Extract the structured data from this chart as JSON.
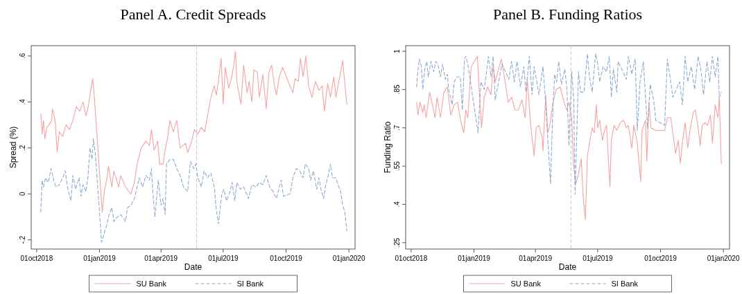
{
  "chart_data": [
    {
      "type": "line",
      "title": "Panel A. Credit Spreads",
      "xlabel": "Date",
      "ylabel": "Spread (%)",
      "xlim": [
        "2018-09-23",
        "2020-01-10"
      ],
      "xticks": [
        {
          "value": "2018-10-01",
          "label": "01oct2018"
        },
        {
          "value": "2019-01-01",
          "label": "01jan2019"
        },
        {
          "value": "2019-04-01",
          "label": "01apr2019"
        },
        {
          "value": "2019-07-01",
          "label": "01jul2019"
        },
        {
          "value": "2019-10-01",
          "label": "01oct2019"
        },
        {
          "value": "2020-01-01",
          "label": "01jan2020"
        }
      ],
      "ylim": [
        -0.24,
        0.645
      ],
      "yticks": [
        {
          "value": -0.2,
          "label": "-.2"
        },
        {
          "value": 0,
          "label": "0"
        },
        {
          "value": 0.2,
          "label": ".2"
        },
        {
          "value": 0.4,
          "label": ".4"
        },
        {
          "value": 0.6,
          "label": ".6"
        }
      ],
      "legend": "bottom",
      "ref_lines": [
        {
          "axis": "x",
          "value": "2019-05-23",
          "color": "#c8c8c8",
          "line_style": "dashed"
        }
      ],
      "series": [
        {
          "name": "SU Bank",
          "color": "#f4a3a3",
          "line_style": "solid",
          "x": [
            "2018-10-07",
            "2018-10-09",
            "2018-10-11",
            "2018-10-13",
            "2018-10-16",
            "2018-10-19",
            "2018-10-23",
            "2018-10-24",
            "2018-10-28",
            "2018-10-31",
            "2018-11-03",
            "2018-11-08",
            "2018-11-13",
            "2018-11-18",
            "2018-11-23",
            "2018-11-28",
            "2018-12-03",
            "2018-12-08",
            "2018-12-12",
            "2018-12-15",
            "2018-12-18",
            "2018-12-22",
            "2018-12-24",
            "2019-01-05",
            "2019-01-08",
            "2019-01-12",
            "2019-01-14",
            "2019-01-19",
            "2019-01-22",
            "2019-01-29",
            "2019-02-01",
            "2019-02-08",
            "2019-02-13",
            "2019-02-16",
            "2019-02-21",
            "2019-02-25",
            "2019-03-03",
            "2019-03-10",
            "2019-03-15",
            "2019-03-18",
            "2019-03-22",
            "2019-03-27",
            "2019-03-30",
            "2019-04-04",
            "2019-04-07",
            "2019-04-11",
            "2019-04-14",
            "2019-04-19",
            "2019-04-24",
            "2019-04-29",
            "2019-05-07",
            "2019-05-10",
            "2019-05-15",
            "2019-05-20",
            "2019-05-25",
            "2019-05-30",
            "2019-06-04",
            "2019-06-08",
            "2019-06-13",
            "2019-06-18",
            "2019-06-21",
            "2019-06-24",
            "2019-06-28",
            "2019-07-01",
            "2019-07-04",
            "2019-07-09",
            "2019-07-13",
            "2019-07-16",
            "2019-07-19",
            "2019-07-21",
            "2019-07-24",
            "2019-07-27",
            "2019-07-31",
            "2019-08-05",
            "2019-08-08",
            "2019-08-12",
            "2019-08-15",
            "2019-08-20",
            "2019-08-23",
            "2019-08-28",
            "2019-09-02",
            "2019-09-06",
            "2019-09-10",
            "2019-09-14",
            "2019-09-17",
            "2019-09-21",
            "2019-09-26",
            "2019-10-04",
            "2019-10-11",
            "2019-10-14",
            "2019-10-19",
            "2019-10-22",
            "2019-10-26",
            "2019-10-30",
            "2019-11-03",
            "2019-11-08",
            "2019-11-13",
            "2019-11-18",
            "2019-11-23",
            "2019-11-26",
            "2019-12-01",
            "2019-12-05",
            "2019-12-10",
            "2019-12-13",
            "2019-12-18",
            "2019-12-23",
            "2019-12-26",
            "2019-12-29"
          ],
          "values": [
            0.35,
            0.26,
            0.32,
            0.24,
            0.29,
            0.3,
            0.32,
            0.37,
            0.32,
            0.18,
            0.27,
            0.25,
            0.3,
            0.28,
            0.32,
            0.38,
            0.36,
            0.4,
            0.34,
            0.37,
            0.43,
            0.5,
            0.44,
            -0.08,
            0.01,
            0.07,
            0.12,
            0.03,
            0.1,
            0.03,
            0.08,
            0.03,
            0.01,
            0.0,
            0.05,
            0.13,
            0.2,
            0.23,
            0.21,
            0.28,
            0.19,
            0.23,
            0.13,
            0.13,
            0.19,
            0.25,
            0.32,
            0.27,
            0.32,
            0.2,
            0.22,
            0.18,
            0.22,
            0.28,
            0.26,
            0.29,
            0.27,
            0.34,
            0.42,
            0.47,
            0.43,
            0.49,
            0.59,
            0.39,
            0.55,
            0.46,
            0.5,
            0.55,
            0.62,
            0.49,
            0.44,
            0.39,
            0.56,
            0.44,
            0.49,
            0.4,
            0.54,
            0.53,
            0.42,
            0.52,
            0.37,
            0.53,
            0.56,
            0.47,
            0.43,
            0.51,
            0.55,
            0.49,
            0.44,
            0.5,
            0.49,
            0.59,
            0.51,
            0.6,
            0.47,
            0.42,
            0.49,
            0.45,
            0.47,
            0.36,
            0.48,
            0.42,
            0.51,
            0.42,
            0.5,
            0.58,
            0.48,
            0.39
          ]
        },
        {
          "name": "SI Bank",
          "color": "#8eaad3",
          "line_style": "dashed",
          "x": [
            "2018-10-07",
            "2018-10-09",
            "2018-10-11",
            "2018-10-14",
            "2018-10-18",
            "2018-10-22",
            "2018-10-26",
            "2018-10-29",
            "2018-11-03",
            "2018-11-08",
            "2018-11-12",
            "2018-11-15",
            "2018-11-20",
            "2018-11-23",
            "2018-11-27",
            "2018-12-02",
            "2018-12-05",
            "2018-12-08",
            "2018-12-12",
            "2018-12-15",
            "2018-12-18",
            "2018-12-21",
            "2018-12-23",
            "2018-12-26",
            "2019-01-04",
            "2019-01-07",
            "2019-01-12",
            "2019-01-15",
            "2019-01-19",
            "2019-01-22",
            "2019-01-27",
            "2019-02-01",
            "2019-02-08",
            "2019-02-11",
            "2019-02-16",
            "2019-02-21",
            "2019-02-25",
            "2019-02-28",
            "2019-03-05",
            "2019-03-10",
            "2019-03-15",
            "2019-03-18",
            "2019-03-20",
            "2019-03-23",
            "2019-03-28",
            "2019-04-01",
            "2019-04-04",
            "2019-04-07",
            "2019-04-09",
            "2019-04-14",
            "2019-04-19",
            "2019-04-24",
            "2019-04-29",
            "2019-05-04",
            "2019-05-10",
            "2019-05-14",
            "2019-05-19",
            "2019-05-22",
            "2019-05-25",
            "2019-05-30",
            "2019-06-03",
            "2019-06-08",
            "2019-06-13",
            "2019-06-18",
            "2019-06-21",
            "2019-06-24",
            "2019-06-26",
            "2019-06-29",
            "2019-07-02",
            "2019-07-06",
            "2019-07-11",
            "2019-07-14",
            "2019-07-18",
            "2019-07-21",
            "2019-07-26",
            "2019-07-31",
            "2019-08-07",
            "2019-08-12",
            "2019-08-18",
            "2019-08-23",
            "2019-08-28",
            "2019-09-02",
            "2019-09-07",
            "2019-09-12",
            "2019-09-17",
            "2019-09-21",
            "2019-09-24",
            "2019-09-27",
            "2019-10-07",
            "2019-10-11",
            "2019-10-16",
            "2019-10-21",
            "2019-10-26",
            "2019-10-29",
            "2019-11-03",
            "2019-11-06",
            "2019-11-10",
            "2019-11-15",
            "2019-11-18",
            "2019-11-21",
            "2019-11-25",
            "2019-11-28",
            "2019-12-01",
            "2019-12-05",
            "2019-12-08",
            "2019-12-13",
            "2019-12-16",
            "2019-12-20",
            "2019-12-23",
            "2019-12-26",
            "2019-12-29"
          ],
          "values": [
            -0.08,
            0.06,
            0.03,
            0.07,
            0.05,
            0.11,
            0.06,
            0.03,
            0.04,
            0.07,
            0.1,
            0.03,
            -0.03,
            0.08,
            0.02,
            0.07,
            -0.01,
            0.04,
            0.01,
            0.07,
            0.2,
            0.15,
            0.24,
            0.17,
            -0.21,
            -0.18,
            -0.13,
            -0.09,
            -0.06,
            -0.12,
            -0.1,
            -0.09,
            -0.12,
            -0.06,
            -0.05,
            -0.02,
            0.03,
            0.07,
            0.03,
            0.08,
            0.06,
            0.11,
            0.01,
            -0.1,
            0.06,
            -0.05,
            -0.02,
            -0.09,
            0.13,
            0.15,
            0.15,
            0.11,
            0.08,
            0.03,
            0.01,
            0.14,
            0.11,
            0.13,
            0.07,
            0.03,
            0.1,
            0.07,
            0.09,
            0.03,
            -0.07,
            -0.13,
            -0.08,
            0.0,
            0.02,
            -0.03,
            0.01,
            0.05,
            -0.03,
            0.05,
            0.02,
            0.03,
            -0.02,
            0.04,
            0.03,
            0.05,
            0.04,
            0.08,
            0.03,
            0.01,
            -0.02,
            0.03,
            0.06,
            -0.01,
            0.0,
            0.07,
            0.11,
            0.1,
            0.07,
            0.13,
            0.11,
            0.06,
            0.1,
            0.02,
            0.07,
            0.02,
            -0.02,
            0.04,
            0.07,
            0.13,
            0.07,
            0.07,
            0.04,
            0.01,
            -0.05,
            -0.08,
            -0.16
          ]
        }
      ]
    },
    {
      "type": "line",
      "title": "Panel B. Funding Ratios",
      "xlabel": "Date",
      "ylabel": "Funding Ratio",
      "xlim": [
        "2018-09-23",
        "2020-01-10"
      ],
      "xticks": [
        {
          "value": "2018-10-01",
          "label": "01oct2018"
        },
        {
          "value": "2019-01-01",
          "label": "01jan2019"
        },
        {
          "value": "2019-04-01",
          "label": "01apr2019"
        },
        {
          "value": "2019-07-01",
          "label": "01jul2019"
        },
        {
          "value": "2019-10-01",
          "label": "01oct2019"
        },
        {
          "value": "2020-01-01",
          "label": "01jan2020"
        }
      ],
      "ylim": [
        0.225,
        1.022
      ],
      "yticks": [
        {
          "value": 0.25,
          "label": ".25"
        },
        {
          "value": 0.4,
          "label": ".4"
        },
        {
          "value": 0.55,
          "label": ".55"
        },
        {
          "value": 0.7,
          "label": ".7"
        },
        {
          "value": 0.85,
          "label": ".85"
        },
        1
      ],
      "legend": "bottom",
      "ref_lines": [
        {
          "axis": "x",
          "value": "2019-05-23",
          "color": "#c8c8c8",
          "line_style": "dashed"
        }
      ],
      "series": [
        {
          "name": "SU Bank",
          "color": "#f4a3a3",
          "line_style": "solid",
          "x": [
            "2018-10-09",
            "2018-10-11",
            "2018-10-14",
            "2018-10-18",
            "2018-10-20",
            "2018-10-23",
            "2018-10-28",
            "2018-11-02",
            "2018-11-05",
            "2018-11-08",
            "2018-11-13",
            "2018-11-18",
            "2018-11-23",
            "2018-11-28",
            "2018-12-03",
            "2018-12-08",
            "2018-12-13",
            "2018-12-17",
            "2018-12-20",
            "2018-12-23",
            "2018-12-26",
            "2018-12-28",
            "2019-01-06",
            "2019-01-09",
            "2019-01-12",
            "2019-01-16",
            "2019-01-21",
            "2019-01-26",
            "2019-01-29",
            "2019-02-01",
            "2019-02-10",
            "2019-02-15",
            "2019-02-20",
            "2019-02-25",
            "2019-03-02",
            "2019-03-07",
            "2019-03-12",
            "2019-03-17",
            "2019-03-20",
            "2019-03-25",
            "2019-03-30",
            "2019-04-02",
            "2019-04-06",
            "2019-04-11",
            "2019-04-12",
            "2019-04-16",
            "2019-04-19",
            "2019-04-22",
            "2019-04-26",
            "2019-05-01",
            "2019-05-07",
            "2019-05-14",
            "2019-05-17",
            "2019-05-20",
            "2019-05-24",
            "2019-05-27",
            "2019-05-30",
            "2019-06-03",
            "2019-06-07",
            "2019-06-10",
            "2019-06-13",
            "2019-06-16",
            "2019-06-19",
            "2019-06-23",
            "2019-06-26",
            "2019-06-29",
            "2019-07-01",
            "2019-07-04",
            "2019-07-08",
            "2019-07-11",
            "2019-07-14",
            "2019-07-19",
            "2019-07-21",
            "2019-07-25",
            "2019-07-29",
            "2019-08-03",
            "2019-08-08",
            "2019-08-12",
            "2019-08-15",
            "2019-08-20",
            "2019-08-23",
            "2019-08-28",
            "2019-09-02",
            "2019-09-04",
            "2019-09-09",
            "2019-09-11",
            "2019-09-14",
            "2019-09-17",
            "2019-09-24",
            "2019-10-07",
            "2019-10-11",
            "2019-10-16",
            "2019-10-19",
            "2019-10-23",
            "2019-10-27",
            "2019-10-30",
            "2019-11-02",
            "2019-11-06",
            "2019-11-10",
            "2019-11-13",
            "2019-11-18",
            "2019-11-21",
            "2019-11-25",
            "2019-11-28",
            "2019-12-01",
            "2019-12-05",
            "2019-12-09",
            "2019-12-13",
            "2019-12-16",
            "2019-12-20",
            "2019-12-24",
            "2019-12-26",
            "2019-12-29"
          ],
          "values": [
            0.8,
            0.75,
            0.8,
            0.76,
            0.79,
            0.74,
            0.84,
            0.78,
            0.74,
            0.82,
            0.74,
            0.84,
            0.86,
            0.75,
            0.79,
            0.8,
            0.72,
            0.68,
            0.77,
            0.74,
            0.87,
            0.94,
            0.98,
            0.83,
            0.7,
            0.82,
            0.86,
            0.83,
            0.94,
            0.88,
            0.97,
            0.89,
            0.8,
            0.82,
            0.77,
            0.77,
            0.81,
            0.74,
            0.89,
            0.71,
            0.59,
            0.7,
            0.71,
            0.66,
            0.61,
            0.83,
            0.68,
            0.71,
            0.79,
            0.85,
            0.86,
            0.79,
            0.77,
            0.8,
            0.74,
            0.55,
            0.48,
            0.52,
            0.58,
            0.42,
            0.34,
            0.59,
            0.64,
            0.7,
            0.68,
            0.79,
            0.7,
            0.73,
            0.65,
            0.69,
            0.71,
            0.47,
            0.65,
            0.71,
            0.69,
            0.72,
            0.73,
            0.7,
            0.71,
            0.62,
            0.71,
            0.64,
            0.49,
            0.69,
            0.73,
            0.57,
            0.8,
            0.7,
            0.69,
            0.69,
            0.74,
            0.74,
            0.68,
            0.6,
            0.65,
            0.56,
            0.64,
            0.72,
            0.62,
            0.69,
            0.76,
            0.77,
            0.7,
            0.63,
            0.71,
            0.72,
            0.71,
            0.75,
            0.64,
            0.79,
            0.74,
            0.82,
            0.56
          ]
        },
        {
          "name": "SI Bank",
          "color": "#8eaad3",
          "line_style": "dashed",
          "x": [
            "2018-10-09",
            "2018-10-10",
            "2018-10-13",
            "2018-10-16",
            "2018-10-18",
            "2018-10-21",
            "2018-10-24",
            "2018-10-26",
            "2018-10-30",
            "2018-11-03",
            "2018-11-06",
            "2018-11-09",
            "2018-11-13",
            "2018-11-16",
            "2018-11-20",
            "2018-11-23",
            "2018-11-25",
            "2018-11-30",
            "2018-12-03",
            "2018-12-07",
            "2018-12-12",
            "2018-12-15",
            "2018-12-18",
            "2018-12-20",
            "2018-12-23",
            "2019-01-07",
            "2019-01-11",
            "2019-01-16",
            "2019-01-19",
            "2019-01-22",
            "2019-01-26",
            "2019-01-29",
            "2019-02-01",
            "2019-02-11",
            "2019-02-16",
            "2019-02-21",
            "2019-02-25",
            "2019-03-01",
            "2019-03-05",
            "2019-03-10",
            "2019-03-15",
            "2019-03-18",
            "2019-03-23",
            "2019-03-27",
            "2019-03-30",
            "2019-04-03",
            "2019-04-06",
            "2019-04-12",
            "2019-04-16",
            "2019-04-23",
            "2019-04-26",
            "2019-04-29",
            "2019-05-02",
            "2019-05-05",
            "2019-05-09",
            "2019-05-14",
            "2019-05-17",
            "2019-05-20",
            "2019-05-24",
            "2019-05-27",
            "2019-05-29",
            "2019-06-03",
            "2019-06-06",
            "2019-06-11",
            "2019-06-16",
            "2019-06-19",
            "2019-06-23",
            "2019-06-28",
            "2019-07-01",
            "2019-07-04",
            "2019-07-09",
            "2019-07-14",
            "2019-07-18",
            "2019-07-21",
            "2019-07-24",
            "2019-07-29",
            "2019-07-31",
            "2019-08-07",
            "2019-08-12",
            "2019-08-15",
            "2019-08-20",
            "2019-08-25",
            "2019-08-28",
            "2019-09-01",
            "2019-09-06",
            "2019-09-09",
            "2019-09-12",
            "2019-09-16",
            "2019-09-21",
            "2019-09-24",
            "2019-10-07",
            "2019-10-11",
            "2019-10-16",
            "2019-10-19",
            "2019-10-24",
            "2019-10-29",
            "2019-11-02",
            "2019-11-06",
            "2019-11-10",
            "2019-11-15",
            "2019-11-20",
            "2019-11-25",
            "2019-11-29",
            "2019-12-03",
            "2019-12-08",
            "2019-12-12",
            "2019-12-16",
            "2019-12-20",
            "2019-12-24",
            "2019-12-26",
            "2019-12-29"
          ],
          "values": [
            0.86,
            0.9,
            0.97,
            0.94,
            0.85,
            0.93,
            0.96,
            0.9,
            0.96,
            0.92,
            0.96,
            0.95,
            0.9,
            0.95,
            0.89,
            0.91,
            0.85,
            0.79,
            0.88,
            0.9,
            0.9,
            0.77,
            0.97,
            0.98,
            0.95,
            0.68,
            0.88,
            0.85,
            0.91,
            0.98,
            0.9,
            0.98,
            0.81,
            0.95,
            0.92,
            0.89,
            0.96,
            0.88,
            0.96,
            0.86,
            0.94,
            0.84,
            0.98,
            0.83,
            0.94,
            0.88,
            0.83,
            0.94,
            0.79,
            0.48,
            0.74,
            0.91,
            0.88,
            0.96,
            0.87,
            0.93,
            0.85,
            0.63,
            0.92,
            0.81,
            0.44,
            0.92,
            0.84,
            0.84,
            0.99,
            0.9,
            0.84,
            0.99,
            0.95,
            0.88,
            0.94,
            0.92,
            0.98,
            0.82,
            0.93,
            0.84,
            0.96,
            0.92,
            0.89,
            0.98,
            0.91,
            0.97,
            0.69,
            0.88,
            0.96,
            0.82,
            0.7,
            0.87,
            0.81,
            0.73,
            0.71,
            0.97,
            0.88,
            0.82,
            0.85,
            0.88,
            0.79,
            0.98,
            0.88,
            0.94,
            0.85,
            0.98,
            0.93,
            0.83,
            0.96,
            0.88,
            0.98,
            0.9,
            0.98,
            0.82,
            0.84
          ]
        }
      ]
    }
  ]
}
